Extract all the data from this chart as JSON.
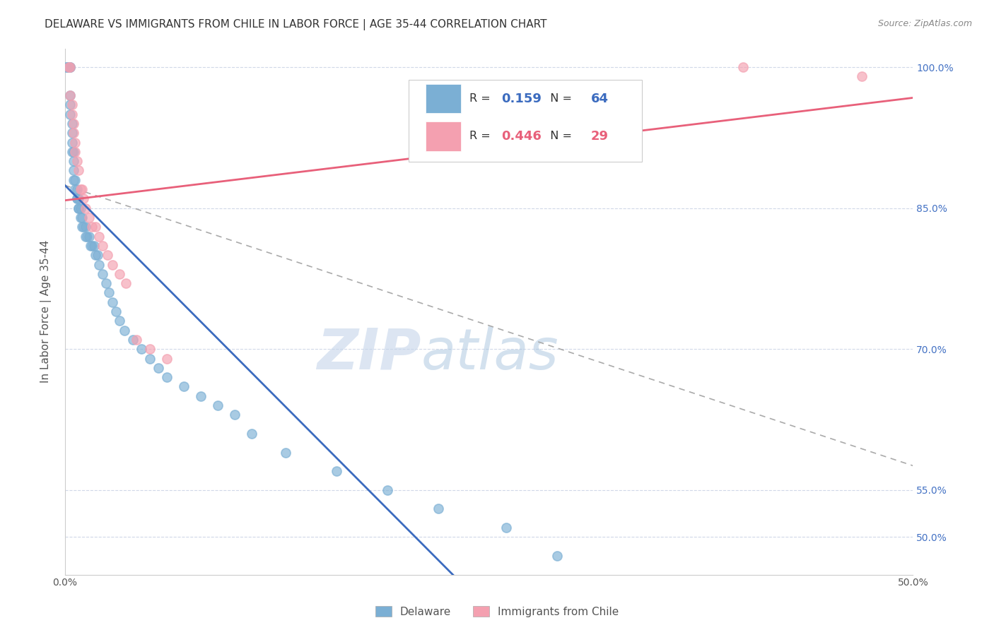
{
  "title": "DELAWARE VS IMMIGRANTS FROM CHILE IN LABOR FORCE | AGE 35-44 CORRELATION CHART",
  "source": "Source: ZipAtlas.com",
  "ylabel": "In Labor Force | Age 35-44",
  "xmin": 0.0,
  "xmax": 0.5,
  "ymin": 0.46,
  "ymax": 1.02,
  "yticks": [
    0.5,
    0.55,
    0.7,
    0.85,
    1.0
  ],
  "ytick_labels": [
    "50.0%",
    "55.0%",
    "70.0%",
    "85.0%",
    "100.0%"
  ],
  "blue_R": 0.159,
  "blue_N": 64,
  "pink_R": 0.446,
  "pink_N": 29,
  "blue_color": "#7bafd4",
  "pink_color": "#f4a0b0",
  "blue_line_color": "#3b6bbf",
  "pink_line_color": "#e8607a",
  "blue_scatter_x": [
    0.001,
    0.001,
    0.002,
    0.002,
    0.002,
    0.003,
    0.003,
    0.003,
    0.003,
    0.003,
    0.004,
    0.004,
    0.004,
    0.004,
    0.005,
    0.005,
    0.005,
    0.005,
    0.006,
    0.006,
    0.007,
    0.007,
    0.007,
    0.008,
    0.008,
    0.008,
    0.009,
    0.009,
    0.01,
    0.01,
    0.011,
    0.012,
    0.012,
    0.013,
    0.014,
    0.015,
    0.016,
    0.017,
    0.018,
    0.019,
    0.02,
    0.022,
    0.024,
    0.026,
    0.028,
    0.03,
    0.032,
    0.035,
    0.04,
    0.045,
    0.05,
    0.055,
    0.06,
    0.07,
    0.08,
    0.09,
    0.1,
    0.11,
    0.13,
    0.16,
    0.19,
    0.22,
    0.26,
    0.29
  ],
  "blue_scatter_y": [
    1.0,
    1.0,
    1.0,
    1.0,
    1.0,
    1.0,
    1.0,
    0.97,
    0.96,
    0.95,
    0.94,
    0.93,
    0.92,
    0.91,
    0.91,
    0.9,
    0.89,
    0.88,
    0.88,
    0.87,
    0.87,
    0.86,
    0.86,
    0.86,
    0.85,
    0.85,
    0.85,
    0.84,
    0.84,
    0.83,
    0.83,
    0.83,
    0.82,
    0.82,
    0.82,
    0.81,
    0.81,
    0.81,
    0.8,
    0.8,
    0.79,
    0.78,
    0.77,
    0.76,
    0.75,
    0.74,
    0.73,
    0.72,
    0.71,
    0.7,
    0.69,
    0.68,
    0.67,
    0.66,
    0.65,
    0.64,
    0.63,
    0.61,
    0.59,
    0.57,
    0.55,
    0.53,
    0.51,
    0.48
  ],
  "pink_scatter_x": [
    0.002,
    0.003,
    0.003,
    0.004,
    0.004,
    0.005,
    0.005,
    0.006,
    0.006,
    0.007,
    0.008,
    0.009,
    0.01,
    0.011,
    0.012,
    0.014,
    0.016,
    0.018,
    0.02,
    0.022,
    0.025,
    0.028,
    0.032,
    0.036,
    0.042,
    0.05,
    0.06,
    0.4,
    0.47
  ],
  "pink_scatter_y": [
    1.0,
    1.0,
    0.97,
    0.96,
    0.95,
    0.94,
    0.93,
    0.92,
    0.91,
    0.9,
    0.89,
    0.87,
    0.87,
    0.86,
    0.85,
    0.84,
    0.83,
    0.83,
    0.82,
    0.81,
    0.8,
    0.79,
    0.78,
    0.77,
    0.71,
    0.7,
    0.69,
    1.0,
    0.99
  ],
  "legend_label_blue": "Delaware",
  "legend_label_pink": "Immigrants from Chile",
  "watermark_zip": "ZIP",
  "watermark_atlas": "atlas",
  "background_color": "#ffffff",
  "grid_color": "#d0d8e8",
  "title_fontsize": 11,
  "axis_label_fontsize": 11,
  "tick_fontsize": 10,
  "right_tick_color": "#4472c4",
  "dashed_line_color": "#aaaaaa"
}
